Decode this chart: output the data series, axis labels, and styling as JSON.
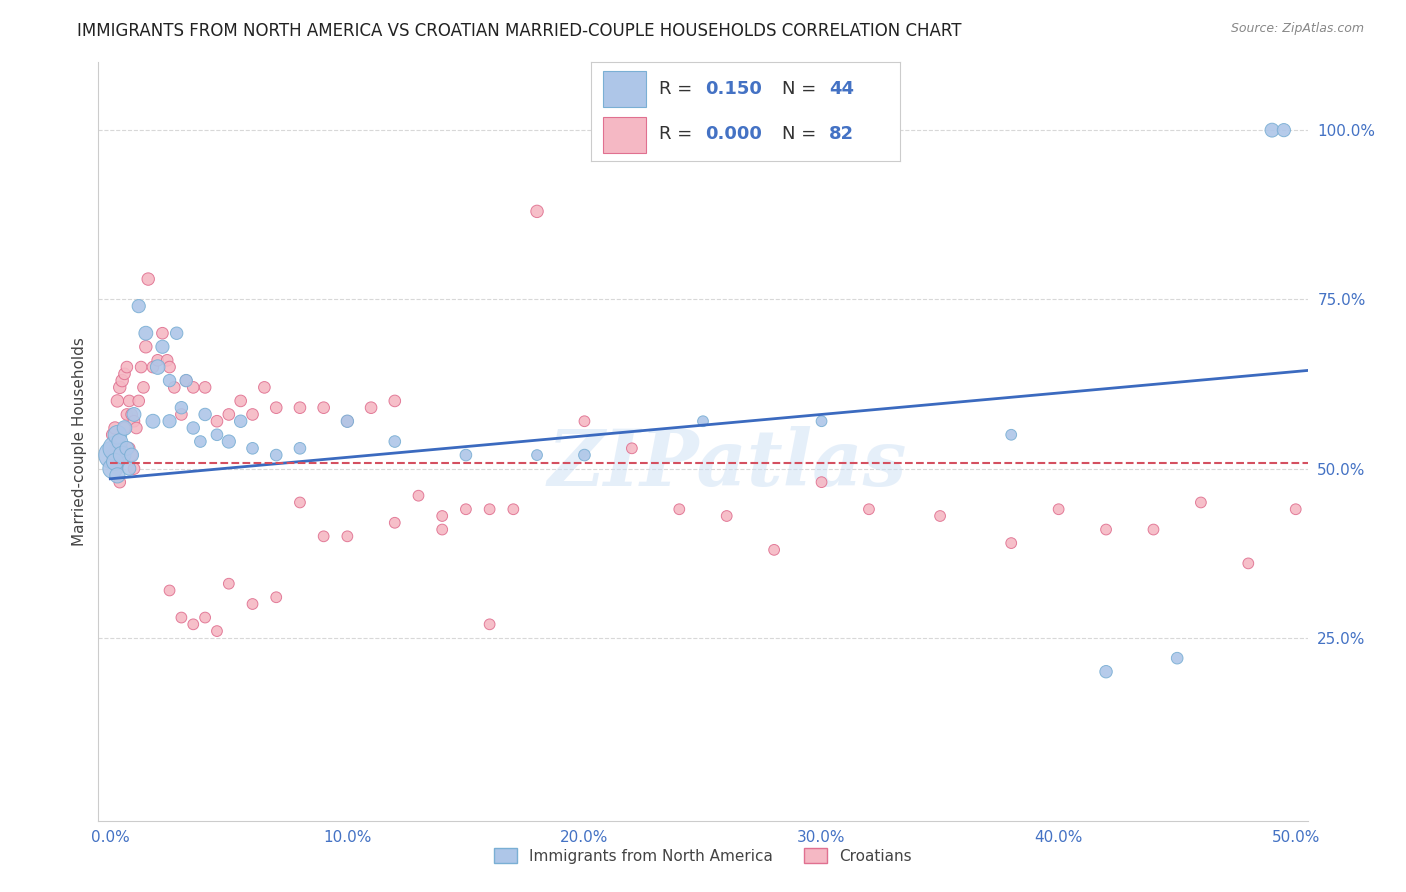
{
  "title": "IMMIGRANTS FROM NORTH AMERICA VS CROATIAN MARRIED-COUPLE HOUSEHOLDS CORRELATION CHART",
  "source": "Source: ZipAtlas.com",
  "ylabel": "Married-couple Households",
  "x_tick_labels": [
    "0.0%",
    "10.0%",
    "20.0%",
    "30.0%",
    "40.0%",
    "50.0%"
  ],
  "x_tick_values": [
    0.0,
    0.1,
    0.2,
    0.3,
    0.4,
    0.5
  ],
  "y_tick_labels_right": [
    "100.0%",
    "75.0%",
    "50.0%",
    "25.0%"
  ],
  "y_tick_values": [
    1.0,
    0.75,
    0.5,
    0.25
  ],
  "xlim": [
    -0.005,
    0.505
  ],
  "ylim": [
    -0.02,
    1.1
  ],
  "legend1_label": "Immigrants from North America",
  "legend2_label": "Croatians",
  "legend1_R": "0.150",
  "legend1_N": "44",
  "legend2_R": "0.000",
  "legend2_N": "82",
  "blue_line_x": [
    0.0,
    0.505
  ],
  "blue_line_y": [
    0.485,
    0.645
  ],
  "pink_line_x": [
    0.0,
    0.505
  ],
  "pink_line_y": [
    0.508,
    0.508
  ],
  "watermark": "ZIPatlas",
  "blue_points_x": [
    0.001,
    0.001,
    0.002,
    0.002,
    0.003,
    0.003,
    0.004,
    0.005,
    0.006,
    0.007,
    0.008,
    0.009,
    0.01,
    0.012,
    0.015,
    0.018,
    0.02,
    0.022,
    0.025,
    0.025,
    0.028,
    0.03,
    0.032,
    0.035,
    0.038,
    0.04,
    0.045,
    0.05,
    0.055,
    0.06,
    0.07,
    0.08,
    0.1,
    0.12,
    0.15,
    0.18,
    0.2,
    0.25,
    0.3,
    0.38,
    0.42,
    0.45,
    0.49,
    0.495
  ],
  "blue_points_y": [
    0.52,
    0.5,
    0.53,
    0.51,
    0.55,
    0.49,
    0.54,
    0.52,
    0.56,
    0.53,
    0.5,
    0.52,
    0.58,
    0.74,
    0.7,
    0.57,
    0.65,
    0.68,
    0.57,
    0.63,
    0.7,
    0.59,
    0.63,
    0.56,
    0.54,
    0.58,
    0.55,
    0.54,
    0.57,
    0.53,
    0.52,
    0.53,
    0.57,
    0.54,
    0.52,
    0.52,
    0.52,
    0.57,
    0.57,
    0.55,
    0.2,
    0.22,
    1.0,
    1.0
  ],
  "blue_sizes": [
    400,
    200,
    300,
    150,
    180,
    120,
    130,
    160,
    110,
    100,
    90,
    100,
    100,
    90,
    100,
    100,
    110,
    90,
    90,
    80,
    80,
    80,
    80,
    80,
    70,
    80,
    70,
    90,
    80,
    70,
    70,
    70,
    80,
    70,
    70,
    60,
    70,
    60,
    60,
    60,
    80,
    70,
    100,
    90
  ],
  "pink_points_x": [
    0.001,
    0.001,
    0.002,
    0.002,
    0.003,
    0.003,
    0.004,
    0.004,
    0.005,
    0.005,
    0.006,
    0.006,
    0.007,
    0.007,
    0.008,
    0.008,
    0.009,
    0.009,
    0.01,
    0.01,
    0.011,
    0.012,
    0.013,
    0.014,
    0.015,
    0.016,
    0.018,
    0.02,
    0.022,
    0.024,
    0.025,
    0.027,
    0.03,
    0.032,
    0.035,
    0.04,
    0.045,
    0.05,
    0.055,
    0.06,
    0.065,
    0.07,
    0.08,
    0.09,
    0.1,
    0.11,
    0.12,
    0.13,
    0.14,
    0.15,
    0.16,
    0.17,
    0.18,
    0.2,
    0.22,
    0.24,
    0.26,
    0.28,
    0.3,
    0.32,
    0.35,
    0.38,
    0.4,
    0.42,
    0.44,
    0.46,
    0.48,
    0.5,
    0.025,
    0.03,
    0.035,
    0.04,
    0.045,
    0.05,
    0.06,
    0.07,
    0.08,
    0.09,
    0.1,
    0.12,
    0.14,
    0.16
  ],
  "pink_points_y": [
    0.52,
    0.55,
    0.56,
    0.53,
    0.6,
    0.5,
    0.62,
    0.48,
    0.63,
    0.52,
    0.64,
    0.56,
    0.65,
    0.58,
    0.6,
    0.53,
    0.58,
    0.52,
    0.57,
    0.5,
    0.56,
    0.6,
    0.65,
    0.62,
    0.68,
    0.78,
    0.65,
    0.66,
    0.7,
    0.66,
    0.65,
    0.62,
    0.58,
    0.63,
    0.62,
    0.62,
    0.57,
    0.58,
    0.6,
    0.58,
    0.62,
    0.59,
    0.59,
    0.59,
    0.57,
    0.59,
    0.6,
    0.46,
    0.43,
    0.44,
    0.44,
    0.44,
    0.88,
    0.57,
    0.53,
    0.44,
    0.43,
    0.38,
    0.48,
    0.44,
    0.43,
    0.39,
    0.44,
    0.41,
    0.41,
    0.45,
    0.36,
    0.44,
    0.32,
    0.28,
    0.27,
    0.28,
    0.26,
    0.33,
    0.3,
    0.31,
    0.45,
    0.4,
    0.4,
    0.42,
    0.41,
    0.27
  ],
  "pink_sizes": [
    90,
    80,
    80,
    70,
    80,
    70,
    80,
    70,
    80,
    70,
    70,
    70,
    70,
    70,
    70,
    70,
    70,
    70,
    70,
    70,
    70,
    70,
    70,
    70,
    80,
    80,
    70,
    70,
    70,
    70,
    70,
    70,
    70,
    70,
    70,
    70,
    70,
    70,
    70,
    70,
    70,
    70,
    70,
    70,
    70,
    70,
    70,
    60,
    60,
    60,
    60,
    60,
    80,
    60,
    60,
    60,
    60,
    60,
    60,
    60,
    60,
    60,
    60,
    60,
    60,
    60,
    60,
    60,
    60,
    60,
    60,
    60,
    60,
    60,
    60,
    60,
    60,
    60,
    60,
    60,
    60,
    60
  ],
  "blue_color": "#aec6e8",
  "pink_color": "#f5b8c4",
  "blue_edge": "#7aafd4",
  "pink_edge": "#e07090",
  "blue_line_color": "#3b6abf",
  "pink_line_color": "#d45060",
  "grid_color": "#d8d8d8",
  "background_color": "#ffffff",
  "title_fontsize": 12,
  "axis_label_fontsize": 11,
  "tick_fontsize": 11,
  "right_label_color": "#4472c4",
  "legend_text_color": "#333333",
  "legend_R_color": "#4472c4",
  "legend_N_color": "#4472c4"
}
